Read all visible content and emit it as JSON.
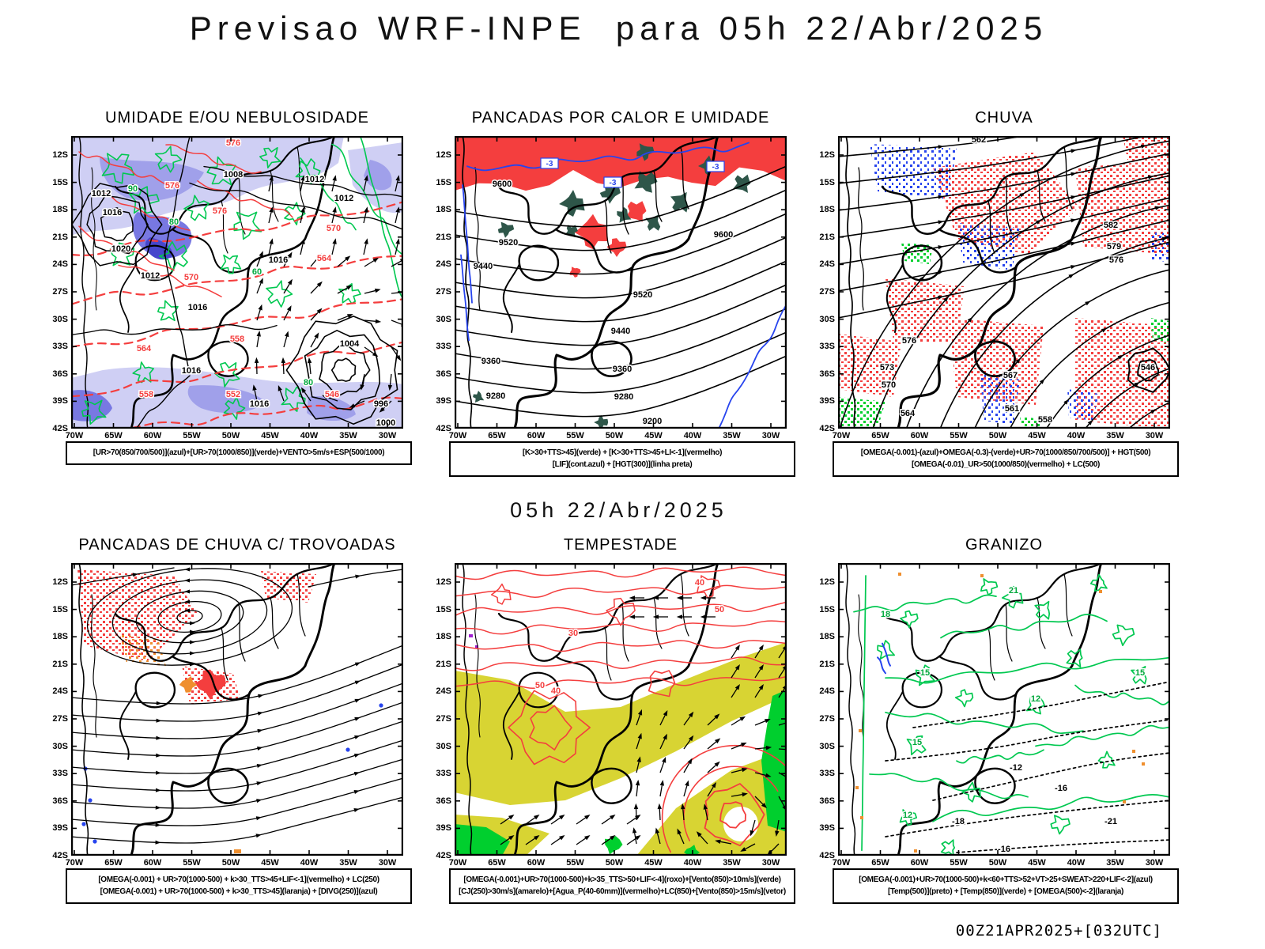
{
  "page": {
    "title": "Previsao WRF-INPE  para 05h 22/Abr/2025",
    "valid_time": "05h 22/Abr/2025",
    "run_info": "00Z21APR2025+[032UTC]"
  },
  "axes": {
    "lat_ticks": [
      "12S",
      "15S",
      "18S",
      "21S",
      "24S",
      "27S",
      "30S",
      "33S",
      "36S",
      "39S",
      "42S"
    ],
    "lon_ticks": [
      "70W",
      "65W",
      "60W",
      "55W",
      "50W",
      "45W",
      "40W",
      "35W",
      "30W"
    ]
  },
  "colors": {
    "red": "#f43e3e",
    "green": "#00c850",
    "green_label": "#00a83c",
    "green_fill": "#00cf2e",
    "dark_teal": "#2e5649",
    "blue": "#2744ee",
    "orange": "#ef8f2e",
    "yellow": "#d8d433",
    "purple_light": "#cfcff4",
    "purple_mid": "#a0a0ea",
    "purple_deep": "#7878e2",
    "purple_dark": "#4646cc",
    "black": "#000000"
  },
  "chart_data": [
    {
      "type": "heatmap",
      "title": "UMIDADE E/OU NEBULOSIDADE",
      "legend": [
        "[UR>70(850/700/500)](azul)+[UR>70(1000/850)](verde)+VENTO>5m/s+ESP(500/1000)"
      ],
      "contour_labels": {
        "black": [
          "1008",
          "1012",
          "1012",
          "1016",
          "1012",
          "1020",
          "1012",
          "1016",
          "1016",
          "1016",
          "1016",
          "1004",
          "996",
          "1000"
        ],
        "red": [
          "576",
          "576",
          "576",
          "570",
          "570",
          "564",
          "558",
          "564",
          "558",
          "546",
          "552"
        ],
        "green": [
          "90",
          "80",
          "60",
          "80"
        ]
      }
    },
    {
      "type": "heatmap",
      "title": "PANCADAS POR CALOR E UMIDADE",
      "legend": [
        "[K>30+TTS>45](verde) + [K>30+TTS>45+LI<-1](vermelho)",
        "[LIF](cont.azul) + [HGT(300)](linha preta)"
      ],
      "contour_labels": {
        "black": [
          "9600",
          "9600",
          "9520",
          "9520",
          "9440",
          "9440",
          "9360",
          "9360",
          "9280",
          "9280",
          "9200"
        ],
        "blue": [
          "-3",
          "-3",
          "-3"
        ]
      }
    },
    {
      "type": "heatmap",
      "title": "CHUVA",
      "legend": [
        "[OMEGA(-0.001)-(azul)+OMEGA(-0.3)-(verde)+UR>70(1000/850/700/500)] + HGT(500)",
        "[OMEGA(-0.01)_UR>50(1000/850)(vermelho) + LC(500)"
      ],
      "contour_labels": {
        "black": [
          "562",
          "582",
          "579",
          "576",
          "576",
          "573",
          "570",
          "567",
          "564",
          "561",
          "558",
          "546"
        ]
      }
    },
    {
      "type": "heatmap",
      "title": "PANCADAS DE CHUVA C/ TROVOADAS",
      "legend": [
        "[OMEGA(-0.001) + UR>70(1000-500) + k>30_TTS>45+LIF<-1](vermelho) + LC(250)",
        "[OMEGA(-0.001) + UR>70(1000-500) + k>30_TTS>45](laranja) + [DIVG(250)](azul)"
      ],
      "contour_labels": {}
    },
    {
      "type": "heatmap",
      "title": "TEMPESTADE",
      "legend": [
        "[OMEGA(-0.001)+UR>70(1000-500)+k>35_TTS>50+LIF<-4](roxo)+[Vento(850)>10m/s](verde)",
        "[CJ(250)>30m/s](amarelo)+[Agua_P(40-60mm)](vermelho)+LC(850)+[Vento(850)>15m/s](vetor)"
      ],
      "contour_labels": {
        "red": [
          "40",
          "50",
          "30",
          "40",
          "50"
        ]
      }
    },
    {
      "type": "heatmap",
      "title": "GRANIZO",
      "legend": [
        "[OMEGA(-0.001)+UR>70(1000-500)+k<60+TTS>52+VT>25+SWEAT>220+LIF<-2](azul)",
        "[Temp(500)](preto) + [Temp(850)](verde) + [OMEGA(500)<-2](laranja)"
      ],
      "contour_labels": {
        "green": [
          "21",
          "18",
          "15",
          "12",
          "15",
          "12",
          "15"
        ],
        "black": [
          "-12",
          "-16",
          "-18",
          "-21",
          "-16"
        ]
      }
    }
  ]
}
